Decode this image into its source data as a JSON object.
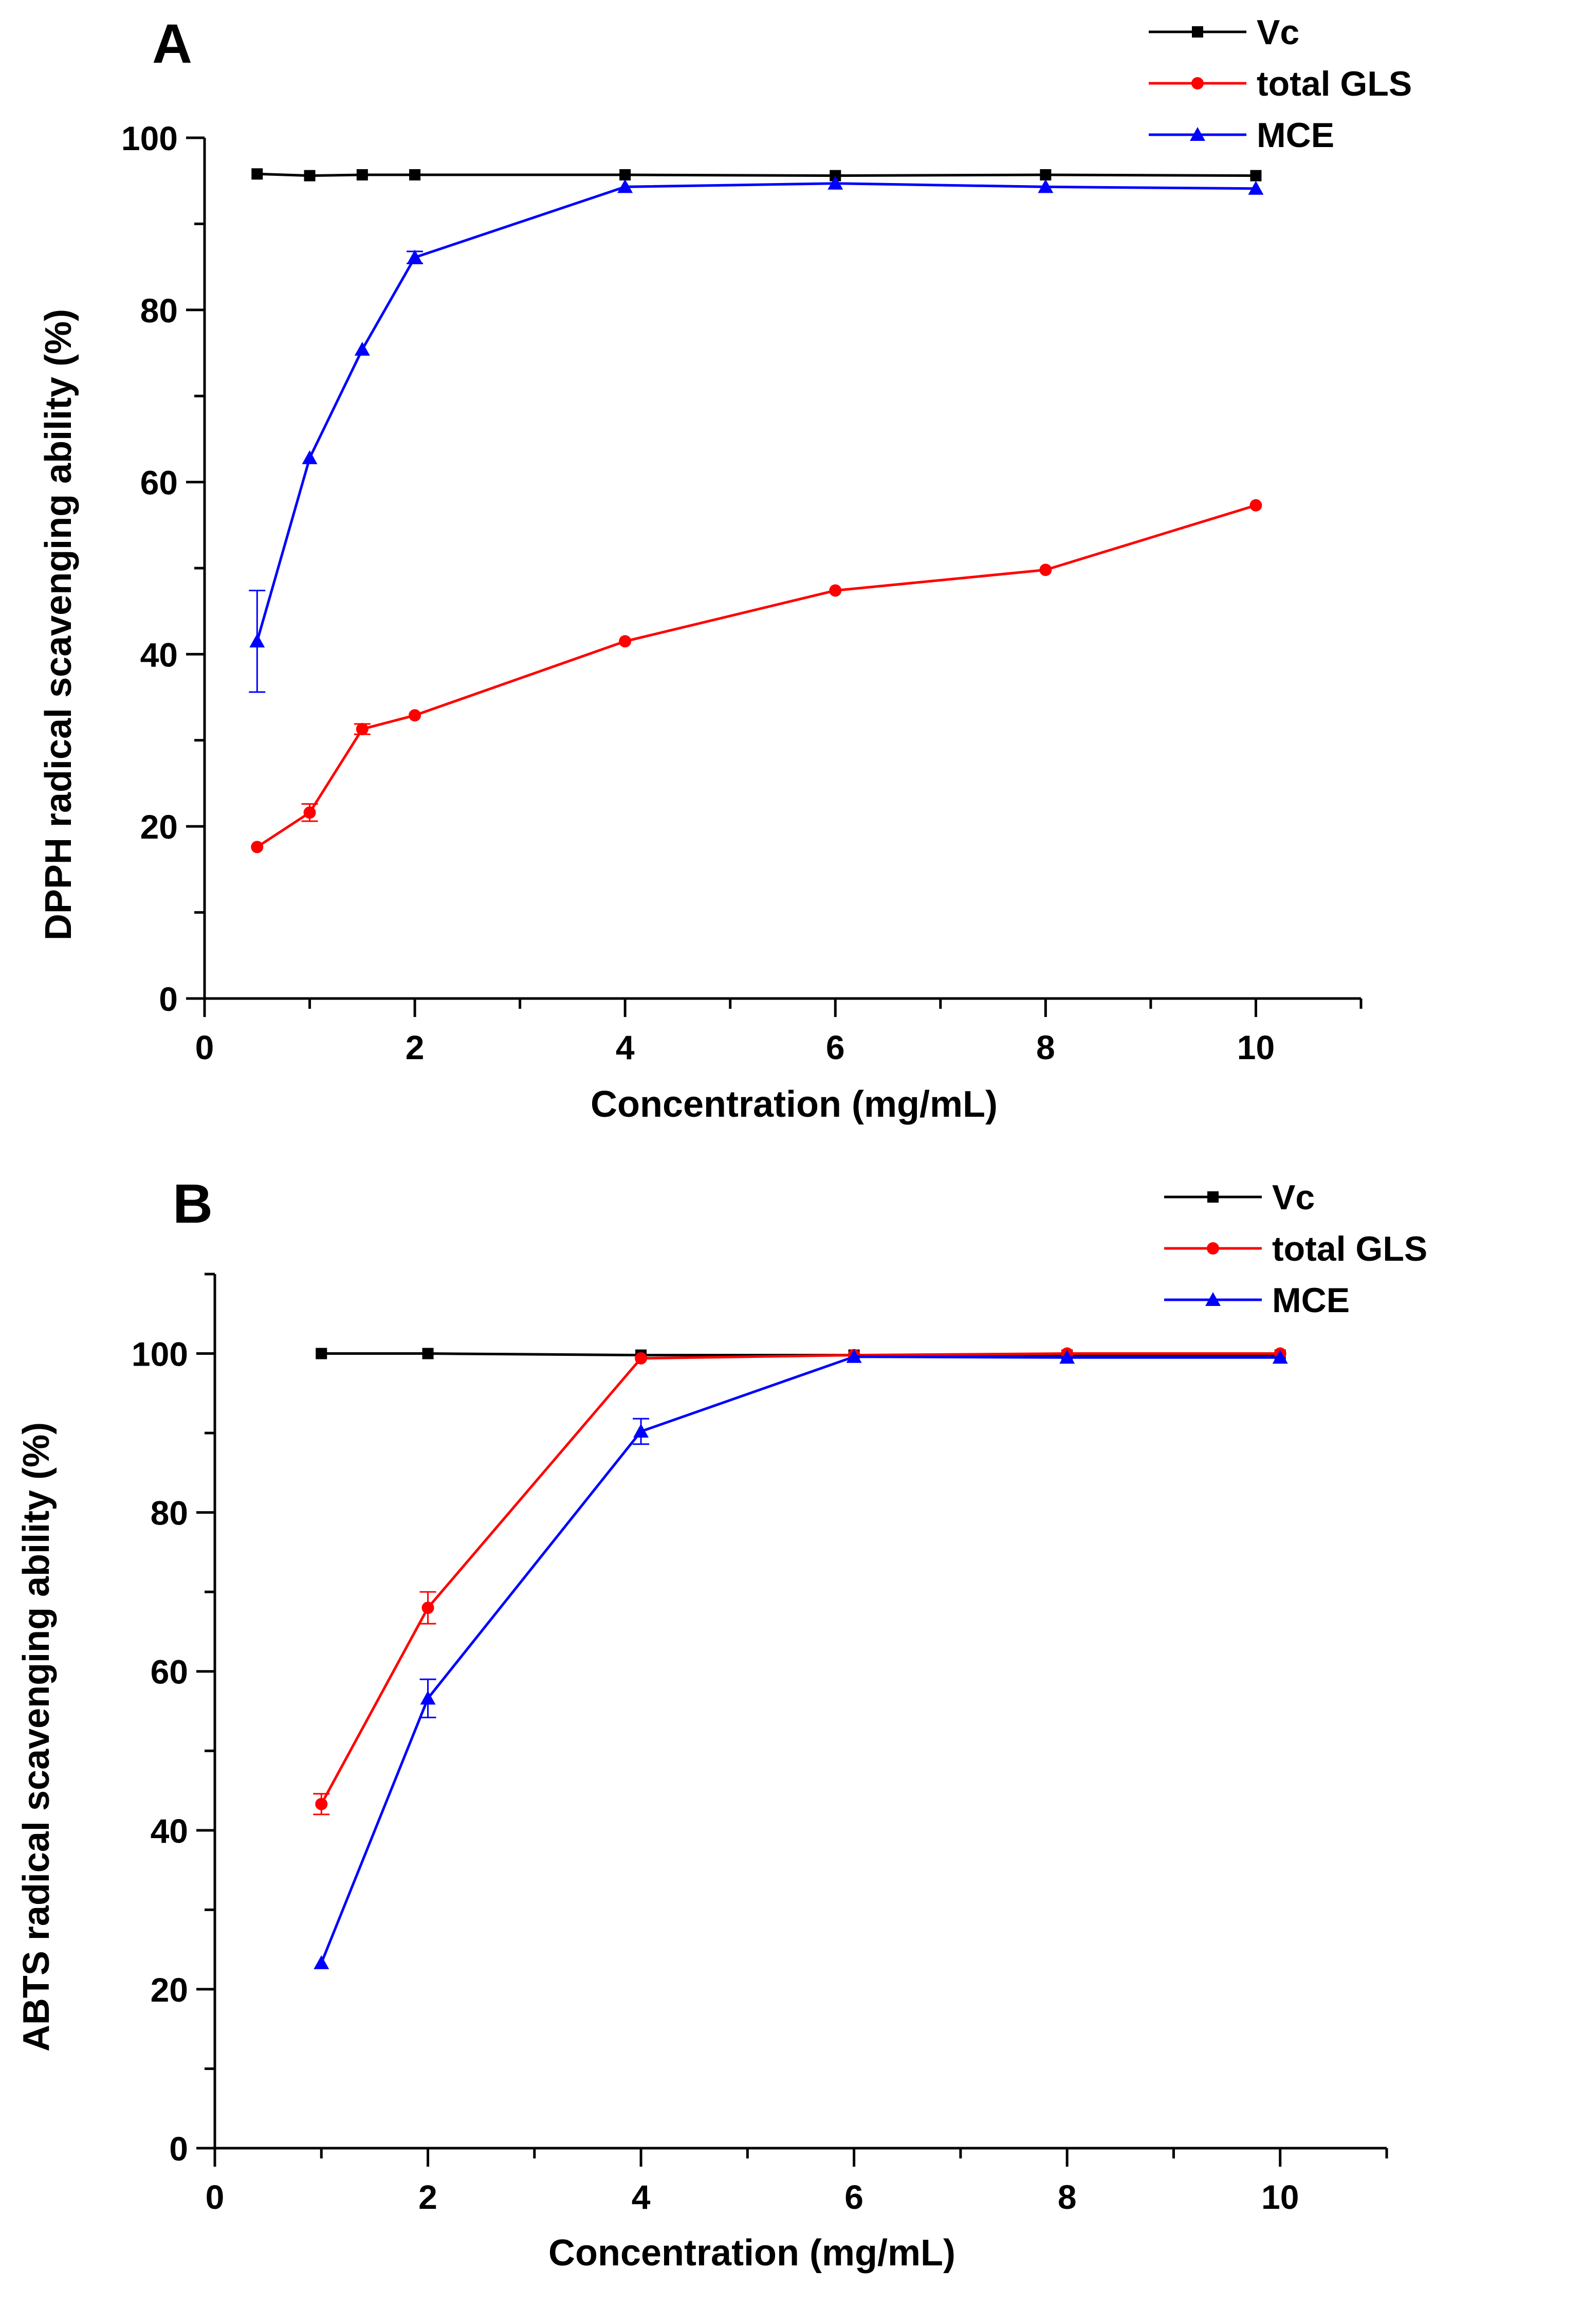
{
  "figure": {
    "panels": [
      "A",
      "B"
    ]
  },
  "chart_data": [
    {
      "type": "line",
      "panel_label": "A",
      "title": "",
      "xlabel": "Concentration (mg/mL)",
      "ylabel": "DPPH radical scavenging ability (%)",
      "xlim": [
        0,
        11
      ],
      "ylim": [
        0,
        100
      ],
      "xticks": [
        0,
        2,
        4,
        6,
        8,
        10
      ],
      "yticks": [
        0,
        20,
        40,
        60,
        80,
        100
      ],
      "grid": false,
      "legend_position": "top-right",
      "series": [
        {
          "name": "Vc",
          "color": "#000000",
          "marker": "square",
          "x": [
            0.5,
            1,
            1.5,
            2,
            4,
            6,
            8,
            10
          ],
          "y": [
            95.8,
            95.6,
            95.7,
            95.7,
            95.7,
            95.6,
            95.7,
            95.6
          ],
          "err": [
            0,
            0,
            0,
            0,
            0,
            0,
            0,
            0
          ]
        },
        {
          "name": "total GLS",
          "color": "#ff0000",
          "marker": "circle",
          "x": [
            0.5,
            1,
            1.5,
            2,
            4,
            6,
            8,
            10
          ],
          "y": [
            17.6,
            21.6,
            31.3,
            32.9,
            41.5,
            47.4,
            49.8,
            57.3
          ],
          "err": [
            0,
            1.0,
            0.6,
            0,
            0,
            0,
            0,
            0
          ]
        },
        {
          "name": "MCE",
          "color": "#0000ff",
          "marker": "triangle",
          "x": [
            0.5,
            1,
            1.5,
            2,
            4,
            6,
            8,
            10
          ],
          "y": [
            41.5,
            62.8,
            75.4,
            86.1,
            94.3,
            94.7,
            94.3,
            94.1
          ],
          "err": [
            5.9,
            0,
            0,
            0.7,
            0,
            0,
            0,
            0
          ]
        }
      ]
    },
    {
      "type": "line",
      "panel_label": "B",
      "title": "",
      "xlabel": "Concentration (mg/mL)",
      "ylabel": "ABTS radical scavenging ability (%)",
      "xlim": [
        0,
        11
      ],
      "ylim": [
        0,
        110
      ],
      "xticks": [
        0,
        2,
        4,
        6,
        8,
        10
      ],
      "yticks": [
        0,
        20,
        40,
        60,
        80,
        100
      ],
      "grid": false,
      "legend_position": "top-right",
      "series": [
        {
          "name": "Vc",
          "color": "#000000",
          "marker": "square",
          "x": [
            1,
            2,
            4,
            6,
            8,
            10
          ],
          "y": [
            100.0,
            100.0,
            99.8,
            99.8,
            99.8,
            99.8
          ],
          "err": [
            0,
            0,
            0,
            0,
            0,
            0
          ]
        },
        {
          "name": "total GLS",
          "color": "#ff0000",
          "marker": "circle",
          "x": [
            1,
            2,
            4,
            6,
            8,
            10
          ],
          "y": [
            43.3,
            68.0,
            99.4,
            99.8,
            100.0,
            100.0
          ],
          "err": [
            1.3,
            2.0,
            0,
            0,
            0,
            0
          ]
        },
        {
          "name": "MCE",
          "color": "#0000ff",
          "marker": "triangle",
          "x": [
            1,
            2,
            4,
            6,
            8,
            10
          ],
          "y": [
            23.3,
            56.6,
            90.2,
            99.6,
            99.5,
            99.5
          ],
          "err": [
            0,
            2.4,
            1.6,
            0,
            0,
            0
          ]
        }
      ]
    }
  ]
}
